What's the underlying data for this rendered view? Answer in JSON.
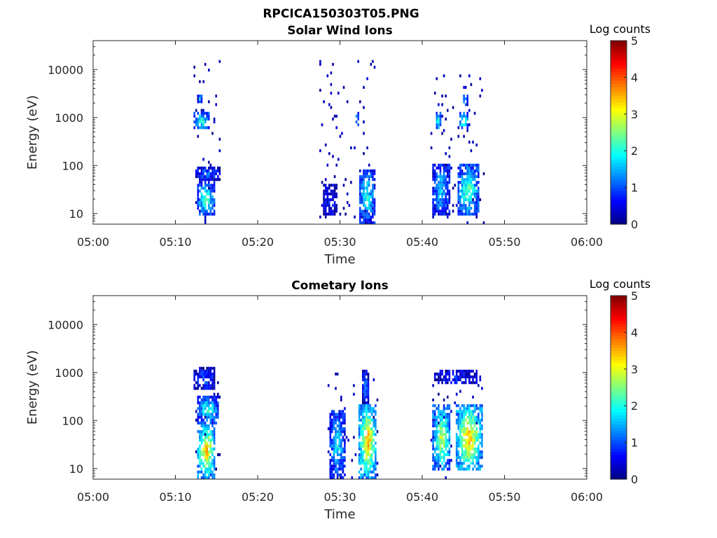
{
  "figure": {
    "title": "RPCICA150303T05.PNG"
  },
  "chart_data": [
    {
      "type": "heatmap",
      "title": "Solar Wind Ions",
      "xlabel": "Time",
      "ylabel": "Energy (eV)",
      "x_ticks": [
        "05:00",
        "05:10",
        "05:20",
        "05:30",
        "05:40",
        "05:50",
        "06:00"
      ],
      "xlim_minutes": [
        0,
        60
      ],
      "y_ticks": [
        "10",
        "100",
        "1000",
        "10000"
      ],
      "y_tick_values": [
        10,
        100,
        1000,
        10000
      ],
      "ylim": [
        6,
        40000
      ],
      "y_scale": "log",
      "colorbar": {
        "title": "Log counts",
        "ticks": [
          "0",
          "1",
          "2",
          "3",
          "4",
          "5"
        ],
        "range": [
          0,
          5
        ],
        "colormap": "jet"
      },
      "clusters": [
        {
          "t_start": 12.2,
          "t_end": 15.3,
          "e_min": 6,
          "e_max": 15000,
          "bands": [
            {
              "e_lo": 8,
              "e_hi": 45,
              "t_lo": 12.5,
              "t_hi": 14.8,
              "peak": 2.3
            },
            {
              "e_lo": 45,
              "e_hi": 90,
              "t_lo": 12.3,
              "t_hi": 15.3,
              "peak": 1.2
            },
            {
              "e_lo": 500,
              "e_hi": 1200,
              "t_lo": 12.2,
              "t_hi": 14.0,
              "peak": 2.3
            },
            {
              "e_lo": 1800,
              "e_hi": 3000,
              "t_lo": 12.6,
              "t_hi": 13.2,
              "peak": 1.8
            }
          ]
        },
        {
          "t_start": 27.5,
          "t_end": 34.5,
          "e_min": 6,
          "e_max": 14000,
          "bands": [
            {
              "e_lo": 8,
              "e_hi": 40,
              "t_lo": 27.8,
              "t_hi": 29.5,
              "peak": 0.8
            },
            {
              "e_lo": 6,
              "e_hi": 80,
              "t_lo": 32.2,
              "t_hi": 34.2,
              "peak": 2.0
            },
            {
              "e_lo": 600,
              "e_hi": 1300,
              "t_lo": 31.8,
              "t_hi": 32.2,
              "peak": 2.0
            }
          ]
        },
        {
          "t_start": 41.0,
          "t_end": 47.5,
          "e_min": 6,
          "e_max": 8000,
          "bands": [
            {
              "e_lo": 8,
              "e_hi": 100,
              "t_lo": 41.2,
              "t_hi": 43.2,
              "peak": 1.8
            },
            {
              "e_lo": 8,
              "e_hi": 100,
              "t_lo": 44.2,
              "t_hi": 46.8,
              "peak": 2.4
            },
            {
              "e_lo": 500,
              "e_hi": 1200,
              "t_lo": 41.5,
              "t_hi": 42.2,
              "peak": 2.2
            },
            {
              "e_lo": 500,
              "e_hi": 1200,
              "t_lo": 44.3,
              "t_hi": 45.6,
              "peak": 2.4
            },
            {
              "e_lo": 1700,
              "e_hi": 3000,
              "t_lo": 44.8,
              "t_hi": 45.4,
              "peak": 1.9
            }
          ]
        }
      ]
    },
    {
      "type": "heatmap",
      "title": "Cometary Ions",
      "xlabel": "Time",
      "ylabel": "Energy (eV)",
      "x_ticks": [
        "05:00",
        "05:10",
        "05:20",
        "05:30",
        "05:40",
        "05:50",
        "06:00"
      ],
      "xlim_minutes": [
        0,
        60
      ],
      "y_ticks": [
        "10",
        "100",
        "1000",
        "10000"
      ],
      "y_tick_values": [
        10,
        100,
        1000,
        10000
      ],
      "ylim": [
        6,
        40000
      ],
      "y_scale": "log",
      "colorbar": {
        "title": "Log counts",
        "ticks": [
          "0",
          "1",
          "2",
          "3",
          "4",
          "5"
        ],
        "range": [
          0,
          5
        ],
        "colormap": "jet"
      },
      "clusters": [
        {
          "t_start": 12.2,
          "t_end": 15.3,
          "e_min": 6,
          "e_max": 1400,
          "bands": [
            {
              "e_lo": 6,
              "e_hi": 80,
              "t_lo": 12.5,
              "t_hi": 14.8,
              "peak": 3.6
            },
            {
              "e_lo": 80,
              "e_hi": 300,
              "t_lo": 12.6,
              "t_hi": 15.2,
              "peak": 2.2
            },
            {
              "e_lo": 400,
              "e_hi": 1200,
              "t_lo": 12.2,
              "t_hi": 14.8,
              "peak": 1.0
            }
          ]
        },
        {
          "t_start": 28.5,
          "t_end": 34.5,
          "e_min": 6,
          "e_max": 1100,
          "bands": [
            {
              "e_lo": 6,
              "e_hi": 150,
              "t_lo": 28.7,
              "t_hi": 30.5,
              "peak": 2.0
            },
            {
              "e_lo": 6,
              "e_hi": 200,
              "t_lo": 32.2,
              "t_hi": 34.4,
              "peak": 3.7
            },
            {
              "e_lo": 200,
              "e_hi": 1000,
              "t_lo": 32.6,
              "t_hi": 33.4,
              "peak": 1.2
            }
          ]
        },
        {
          "t_start": 41.0,
          "t_end": 47.5,
          "e_min": 6,
          "e_max": 1100,
          "bands": [
            {
              "e_lo": 8,
              "e_hi": 200,
              "t_lo": 41.2,
              "t_hi": 43.4,
              "peak": 3.0
            },
            {
              "e_lo": 8,
              "e_hi": 200,
              "t_lo": 44.0,
              "t_hi": 47.2,
              "peak": 3.7
            },
            {
              "e_lo": 500,
              "e_hi": 1100,
              "t_lo": 41.3,
              "t_hi": 46.5,
              "peak": 0.8
            }
          ]
        }
      ]
    }
  ]
}
